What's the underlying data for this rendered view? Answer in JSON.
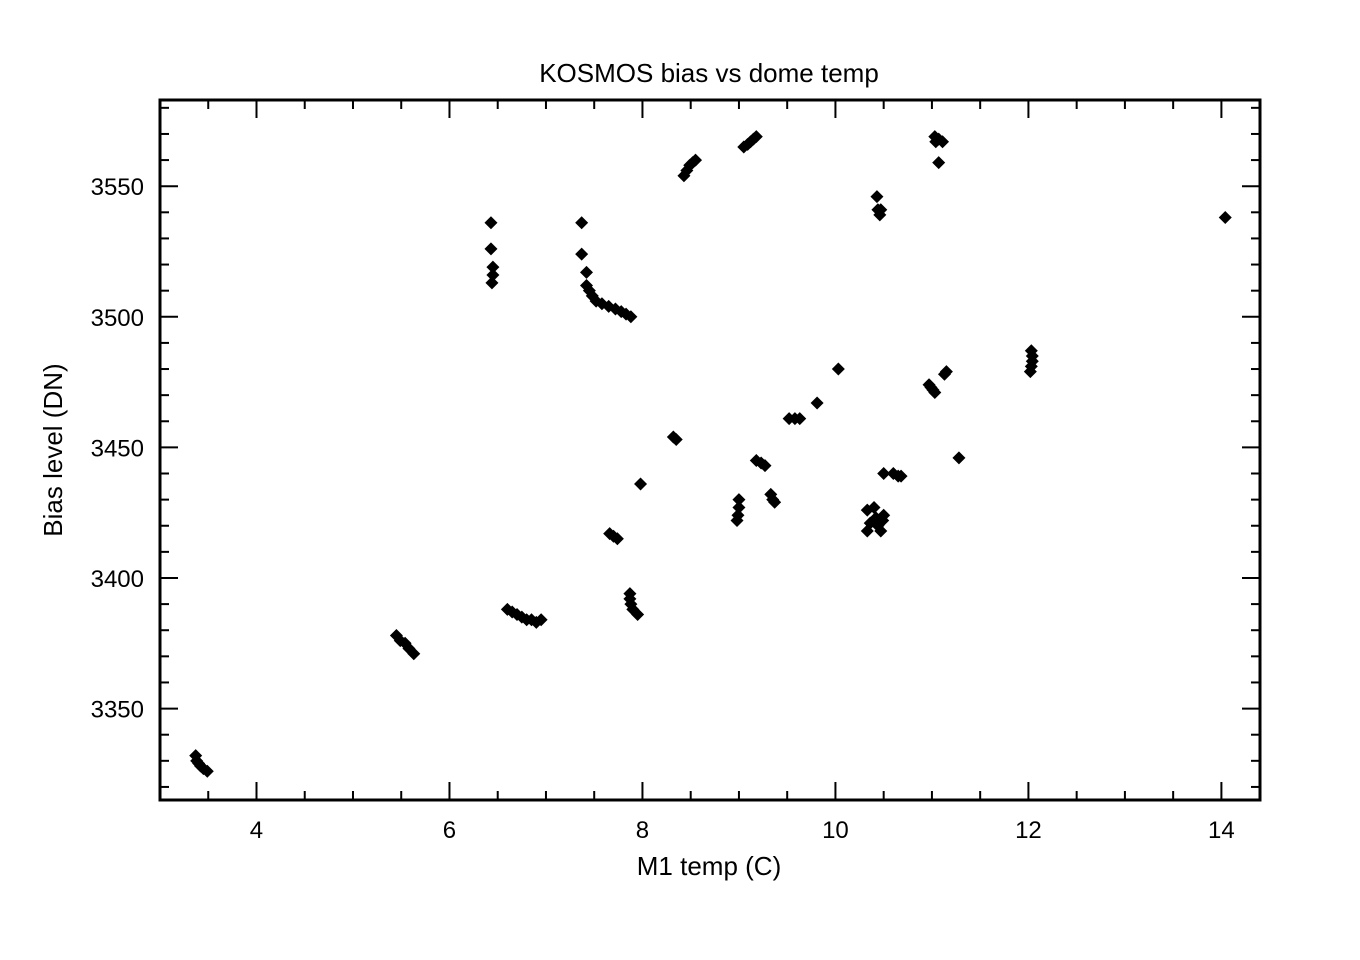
{
  "chart_data": {
    "type": "scatter",
    "title": "KOSMOS bias vs dome temp",
    "xlabel": "M1 temp (C)",
    "ylabel": "Bias level (DN)",
    "xlim": [
      3.0,
      14.4
    ],
    "ylim": [
      3315,
      3583
    ],
    "x_ticks": [
      4,
      6,
      8,
      10,
      12,
      14
    ],
    "y_ticks": [
      3350,
      3400,
      3450,
      3500,
      3550
    ],
    "marker": "diamond",
    "marker_color": "#000000",
    "grid": false,
    "legend": "none",
    "points": [
      {
        "x": 3.37,
        "y": 3332
      },
      {
        "x": 3.38,
        "y": 3330
      },
      {
        "x": 3.4,
        "y": 3329
      },
      {
        "x": 3.42,
        "y": 3328
      },
      {
        "x": 3.45,
        "y": 3327
      },
      {
        "x": 3.49,
        "y": 3326
      },
      {
        "x": 5.45,
        "y": 3378
      },
      {
        "x": 5.49,
        "y": 3376
      },
      {
        "x": 5.54,
        "y": 3375
      },
      {
        "x": 5.58,
        "y": 3373
      },
      {
        "x": 5.63,
        "y": 3371
      },
      {
        "x": 6.43,
        "y": 3536
      },
      {
        "x": 6.43,
        "y": 3526
      },
      {
        "x": 6.45,
        "y": 3519
      },
      {
        "x": 6.45,
        "y": 3516
      },
      {
        "x": 6.44,
        "y": 3513
      },
      {
        "x": 6.6,
        "y": 3388
      },
      {
        "x": 6.65,
        "y": 3387
      },
      {
        "x": 6.7,
        "y": 3386
      },
      {
        "x": 6.75,
        "y": 3385
      },
      {
        "x": 6.8,
        "y": 3384
      },
      {
        "x": 6.85,
        "y": 3384
      },
      {
        "x": 6.9,
        "y": 3383
      },
      {
        "x": 6.95,
        "y": 3384
      },
      {
        "x": 7.37,
        "y": 3536
      },
      {
        "x": 7.37,
        "y": 3524
      },
      {
        "x": 7.42,
        "y": 3517
      },
      {
        "x": 7.42,
        "y": 3512
      },
      {
        "x": 7.45,
        "y": 3510
      },
      {
        "x": 7.48,
        "y": 3508
      },
      {
        "x": 7.52,
        "y": 3506
      },
      {
        "x": 7.58,
        "y": 3505
      },
      {
        "x": 7.65,
        "y": 3504
      },
      {
        "x": 7.72,
        "y": 3503
      },
      {
        "x": 7.78,
        "y": 3502
      },
      {
        "x": 7.83,
        "y": 3501
      },
      {
        "x": 7.88,
        "y": 3500
      },
      {
        "x": 7.66,
        "y": 3417
      },
      {
        "x": 7.7,
        "y": 3416
      },
      {
        "x": 7.74,
        "y": 3415
      },
      {
        "x": 7.87,
        "y": 3394
      },
      {
        "x": 7.87,
        "y": 3392
      },
      {
        "x": 7.88,
        "y": 3390
      },
      {
        "x": 7.9,
        "y": 3388
      },
      {
        "x": 7.95,
        "y": 3386
      },
      {
        "x": 7.98,
        "y": 3436
      },
      {
        "x": 8.32,
        "y": 3454
      },
      {
        "x": 8.35,
        "y": 3453
      },
      {
        "x": 8.43,
        "y": 3554
      },
      {
        "x": 8.46,
        "y": 3556
      },
      {
        "x": 8.49,
        "y": 3558
      },
      {
        "x": 8.52,
        "y": 3559
      },
      {
        "x": 8.55,
        "y": 3560
      },
      {
        "x": 9.0,
        "y": 3430
      },
      {
        "x": 9.0,
        "y": 3427
      },
      {
        "x": 8.99,
        "y": 3424
      },
      {
        "x": 8.98,
        "y": 3422
      },
      {
        "x": 9.05,
        "y": 3565
      },
      {
        "x": 9.09,
        "y": 3566
      },
      {
        "x": 9.12,
        "y": 3567
      },
      {
        "x": 9.15,
        "y": 3568
      },
      {
        "x": 9.18,
        "y": 3569
      },
      {
        "x": 9.18,
        "y": 3445
      },
      {
        "x": 9.23,
        "y": 3444
      },
      {
        "x": 9.27,
        "y": 3443
      },
      {
        "x": 9.33,
        "y": 3432
      },
      {
        "x": 9.35,
        "y": 3430
      },
      {
        "x": 9.37,
        "y": 3429
      },
      {
        "x": 9.52,
        "y": 3461
      },
      {
        "x": 9.58,
        "y": 3461
      },
      {
        "x": 9.63,
        "y": 3461
      },
      {
        "x": 9.81,
        "y": 3467
      },
      {
        "x": 10.03,
        "y": 3480
      },
      {
        "x": 10.33,
        "y": 3426
      },
      {
        "x": 10.33,
        "y": 3418
      },
      {
        "x": 10.36,
        "y": 3421
      },
      {
        "x": 10.4,
        "y": 3427
      },
      {
        "x": 10.42,
        "y": 3423
      },
      {
        "x": 10.44,
        "y": 3420
      },
      {
        "x": 10.47,
        "y": 3418
      },
      {
        "x": 10.49,
        "y": 3422
      },
      {
        "x": 10.5,
        "y": 3424
      },
      {
        "x": 10.43,
        "y": 3546
      },
      {
        "x": 10.44,
        "y": 3541
      },
      {
        "x": 10.46,
        "y": 3539
      },
      {
        "x": 10.47,
        "y": 3541
      },
      {
        "x": 10.5,
        "y": 3440
      },
      {
        "x": 10.6,
        "y": 3440
      },
      {
        "x": 10.65,
        "y": 3439
      },
      {
        "x": 10.68,
        "y": 3439
      },
      {
        "x": 10.97,
        "y": 3474
      },
      {
        "x": 10.99,
        "y": 3473
      },
      {
        "x": 11.01,
        "y": 3472
      },
      {
        "x": 11.03,
        "y": 3471
      },
      {
        "x": 11.03,
        "y": 3569
      },
      {
        "x": 11.04,
        "y": 3567
      },
      {
        "x": 11.07,
        "y": 3568
      },
      {
        "x": 11.11,
        "y": 3567
      },
      {
        "x": 11.07,
        "y": 3559
      },
      {
        "x": 11.13,
        "y": 3478
      },
      {
        "x": 11.15,
        "y": 3479
      },
      {
        "x": 11.28,
        "y": 3446
      },
      {
        "x": 12.03,
        "y": 3487
      },
      {
        "x": 12.04,
        "y": 3485
      },
      {
        "x": 12.04,
        "y": 3483
      },
      {
        "x": 12.03,
        "y": 3481
      },
      {
        "x": 12.02,
        "y": 3479
      },
      {
        "x": 14.04,
        "y": 3538
      }
    ]
  }
}
